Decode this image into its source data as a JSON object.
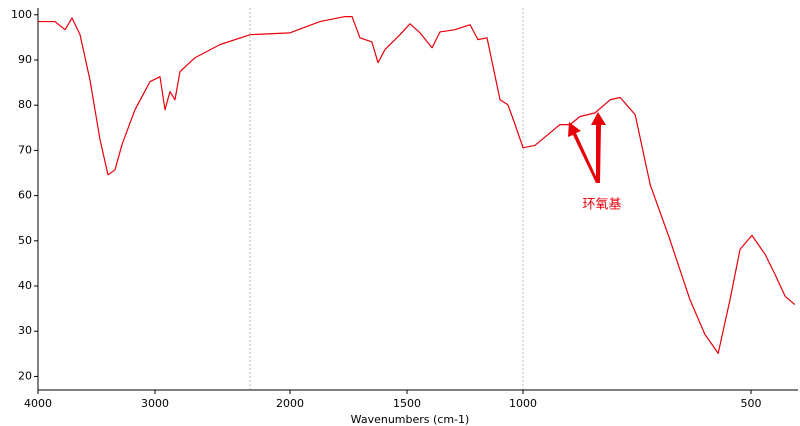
{
  "chart_data": {
    "type": "line",
    "x_label": "Wavenumbers (cm-1)",
    "x": [
      4000,
      3855,
      3769,
      3709,
      3641,
      3556,
      3470,
      3402,
      3342,
      3282,
      3171,
      3043,
      2963,
      2926,
      2889,
      2852,
      2815,
      2704,
      2519,
      2296,
      2000,
      1872,
      1765,
      1735,
      1701,
      1650,
      1624,
      1594,
      1530,
      1487,
      1444,
      1392,
      1358,
      1293,
      1228,
      1194,
      1155,
      1099,
      1065,
      1034,
      1000,
      974,
      919,
      897,
      875,
      842,
      809,
      787,
      754,
      721,
      678,
      634,
      601,
      572,
      546,
      524,
      498,
      469,
      447,
      425,
      404
    ],
    "series": [
      {
        "color": "#e8000b",
        "values": [
          98.5,
          98.5,
          96.7,
          99.3,
          95.6,
          85.6,
          72.4,
          64.6,
          65.7,
          71.3,
          79.0,
          85.2,
          86.3,
          79.0,
          83.0,
          81.2,
          87.4,
          90.5,
          93.4,
          95.6,
          96.0,
          98.5,
          99.6,
          99.6,
          94.9,
          94.0,
          89.4,
          92.3,
          95.6,
          98.0,
          96.0,
          92.7,
          96.2,
          96.7,
          97.8,
          94.5,
          94.9,
          81.2,
          80.1,
          75.7,
          70.6,
          71.1,
          75.7,
          75.7,
          77.5,
          78.3,
          81.2,
          81.7,
          77.9,
          62.4,
          50.3,
          37.0,
          29.3,
          25.1,
          37.0,
          48.1,
          51.2,
          47.0,
          42.5,
          37.7,
          35.9
        ]
      }
    ],
    "xlim": [
      4000,
      397
    ],
    "xticks": [
      4000,
      3000,
      2000,
      1500,
      1000,
      500
    ],
    "ylim": [
      17,
      101.5
    ],
    "yticks": [
      20,
      30,
      40,
      50,
      60,
      70,
      80,
      90,
      100
    ],
    "reference_lines": [
      2296,
      1000
    ],
    "annotation": {
      "text": "环氧基",
      "color": "#e8000b"
    }
  }
}
